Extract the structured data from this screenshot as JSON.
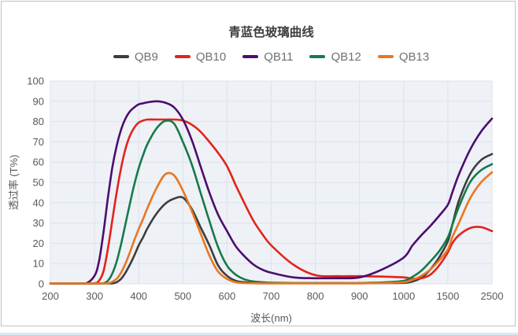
{
  "window": {
    "card_border_color": "#c2c2c2",
    "bottom_strip_color": "#dce6f2",
    "background": "#ffffff"
  },
  "chart": {
    "title": "青蓝色玻璃曲线",
    "x_axis_title": "波长(nm)",
    "y_axis_title": "透过率 (T%)"
  },
  "chart_data": {
    "type": "line",
    "title": "青蓝色玻璃曲线",
    "xlabel": "波长(nm)",
    "ylabel": "透过率 (T%)",
    "ylim": [
      0,
      100
    ],
    "y_ticks": [
      0,
      10,
      20,
      30,
      40,
      50,
      60,
      70,
      80,
      90,
      100
    ],
    "x_ticks": [
      200,
      300,
      400,
      500,
      600,
      700,
      800,
      900,
      1000,
      1500,
      2500
    ],
    "x_axis_note": "ticks evenly spaced: 100nm steps from 200 to 1000, then 1500, then 2500",
    "legend_position": "top",
    "grid": true,
    "plot_bg": "#eef1f6",
    "grid_color": "#dde2eb",
    "x": [
      200,
      250,
      280,
      300,
      310,
      320,
      330,
      340,
      350,
      360,
      370,
      380,
      390,
      400,
      410,
      420,
      440,
      460,
      480,
      500,
      520,
      540,
      560,
      580,
      600,
      620,
      640,
      660,
      680,
      700,
      750,
      800,
      850,
      900,
      950,
      1000,
      1100,
      1200,
      1300,
      1400,
      1500,
      1600,
      1750,
      2000,
      2250,
      2500
    ],
    "series": [
      {
        "name": "QB9",
        "color": "#3d3d3d",
        "values": [
          0,
          0,
          0,
          0,
          0,
          0,
          0,
          0.2,
          0.8,
          2.5,
          5.5,
          9.5,
          14,
          19,
          23,
          27.5,
          34.5,
          39.5,
          42,
          42.5,
          37,
          28,
          19,
          9,
          4,
          1.5,
          0.8,
          0.5,
          0.4,
          0.3,
          0.3,
          0.3,
          0.3,
          0.3,
          0.4,
          0.5,
          1.2,
          3,
          7,
          13,
          21,
          29,
          41,
          54,
          61,
          64
        ]
      },
      {
        "name": "QB10",
        "color": "#e2231a",
        "values": [
          0,
          0,
          0,
          0.3,
          1.5,
          6,
          17,
          31,
          45,
          57,
          66.5,
          73,
          77,
          79.5,
          80.5,
          81,
          81,
          81,
          81,
          80.5,
          78.5,
          75,
          70,
          64.5,
          58,
          48.5,
          39.5,
          31,
          24.5,
          19,
          9.5,
          4.3,
          3.8,
          3.8,
          3.6,
          3.2,
          2.6,
          2.8,
          4.5,
          9,
          15.5,
          20,
          24,
          27.5,
          28,
          26
        ]
      },
      {
        "name": "QB11",
        "color": "#4c0d6e",
        "values": [
          0,
          0,
          0.2,
          4,
          11,
          25,
          42,
          57,
          68,
          76,
          81.5,
          85,
          87,
          88.5,
          89,
          89.5,
          90,
          89.3,
          87,
          81,
          71,
          58,
          45,
          34,
          26,
          18.5,
          13.5,
          9.5,
          7,
          5.5,
          3.2,
          2.8,
          2.8,
          3.2,
          7,
          13,
          19,
          24,
          28.5,
          33.5,
          39,
          45,
          54,
          66,
          75,
          81.5
        ]
      },
      {
        "name": "QB12",
        "color": "#17794a",
        "values": [
          0,
          0,
          0,
          0,
          0,
          0.3,
          1.5,
          5,
          11,
          19.5,
          29.5,
          39.5,
          49,
          57,
          63.5,
          69,
          76.5,
          80.3,
          79,
          70,
          59,
          45,
          31,
          18,
          9,
          4.5,
          2.2,
          1.2,
          0.8,
          0.6,
          0.4,
          0.4,
          0.4,
          0.4,
          0.7,
          1.5,
          3.5,
          6.5,
          11,
          16,
          23,
          29,
          38,
          50,
          56,
          59
        ]
      },
      {
        "name": "QB13",
        "color": "#e87722",
        "values": [
          0,
          0,
          0,
          0,
          0,
          0,
          0.2,
          1,
          2.5,
          5.5,
          10,
          15.5,
          21.5,
          27,
          32,
          37.5,
          47,
          54,
          53.5,
          46,
          36,
          25,
          14,
          6,
          2.5,
          0.8,
          0.4,
          0.3,
          0.2,
          0.2,
          0.2,
          0.2,
          0.2,
          0.2,
          0.4,
          0.8,
          2,
          4,
          7,
          11.5,
          17,
          23,
          30,
          42,
          50,
          55
        ]
      }
    ]
  }
}
